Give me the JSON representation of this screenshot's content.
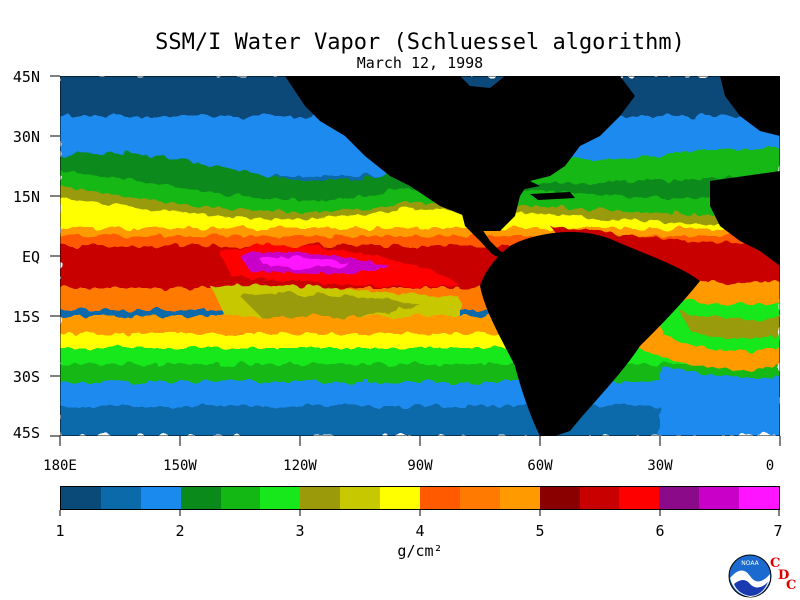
{
  "title": "SSM/I Water Vapor (Schluessel algorithm)",
  "subtitle": "March 12, 1998",
  "map": {
    "lat_labels": [
      "45N",
      "30N",
      "15N",
      "EQ",
      "15S",
      "30S",
      "45S"
    ],
    "lon_labels": [
      "180E",
      "150W",
      "120W",
      "90W",
      "60W",
      "30W",
      "0"
    ],
    "land_color": "#000000",
    "region": "Pacific / Atlantic, 180E to 0, 45N to 45S"
  },
  "colorbar": {
    "colors": [
      "#0a4a78",
      "#0a6aaa",
      "#1a8aee",
      "#0a8a1a",
      "#14b814",
      "#16e81c",
      "#9a9a0a",
      "#c8c800",
      "#ffff00",
      "#ff5a00",
      "#ff7a00",
      "#ff9a00",
      "#8a0000",
      "#c80000",
      "#ff0000",
      "#8a0a8a",
      "#c800c8",
      "#ff14ff"
    ],
    "labels": [
      "1",
      "2",
      "3",
      "4",
      "5",
      "6",
      "7"
    ],
    "units": "g/cm²"
  },
  "logo": {
    "name": "noaa-logo",
    "text": "NOAA",
    "cdc": [
      "C",
      "D",
      "C"
    ]
  }
}
